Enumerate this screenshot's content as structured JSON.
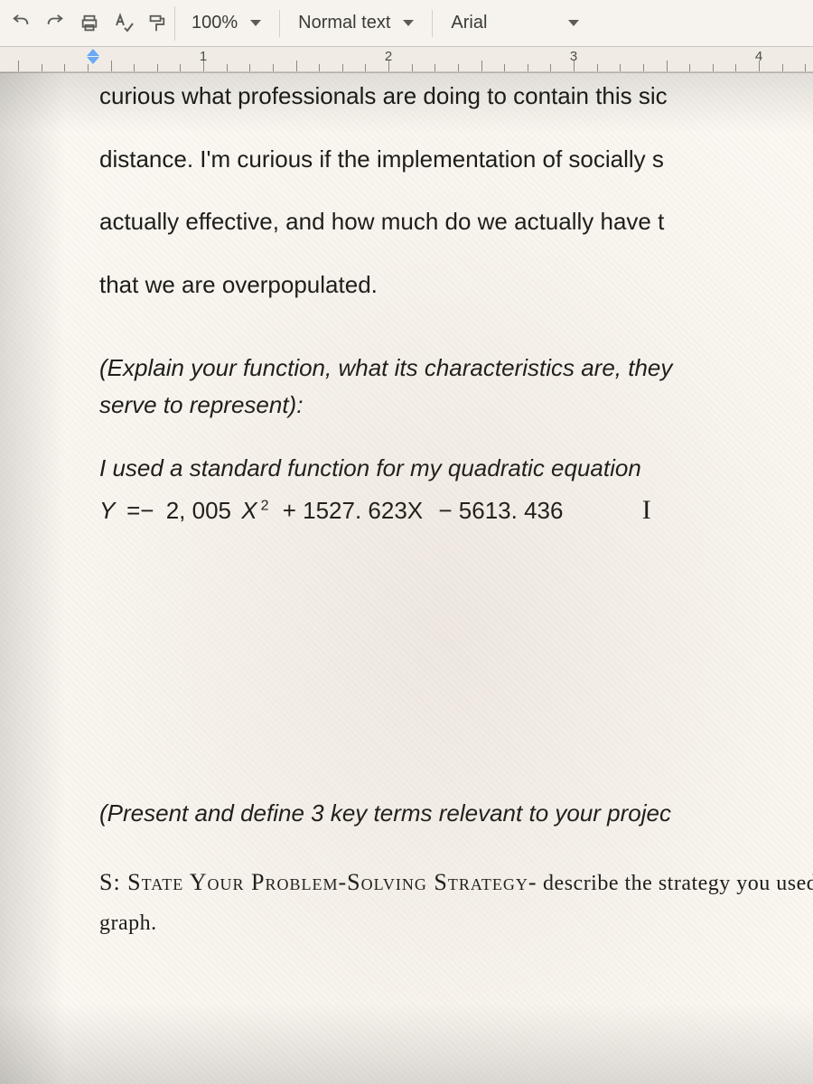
{
  "toolbar": {
    "zoom": "100%",
    "paragraph_style": "Normal text",
    "font_family": "Arial"
  },
  "ruler": {
    "marks": [
      "1",
      "2",
      "3",
      "4"
    ]
  },
  "document": {
    "line1": "curious what professionals are doing to contain this sic",
    "line2": "distance. I'm curious if the implementation of socially s",
    "line3": "actually effective, and how much do we actually have t",
    "line4": "that we are overpopulated.",
    "prompt1a": "(Explain your function, what its characteristics are, they",
    "prompt1b": "serve to represent):",
    "answer1": "I used a standard function for my quadratic equation",
    "equation": {
      "lhs": "Y",
      "eq": "=−",
      "a": "2, 005",
      "var": "X",
      "exp": "2",
      "b": "+ 1527. 623X",
      "c": "− 5613. 436"
    },
    "prompt2": "(Present and define 3 key terms relevant to your projec",
    "strategy_label": "S: State Your Problem-Solving Strategy-",
    "strategy_tail": " describe the strategy you used to",
    "strategy_line2": "graph."
  }
}
